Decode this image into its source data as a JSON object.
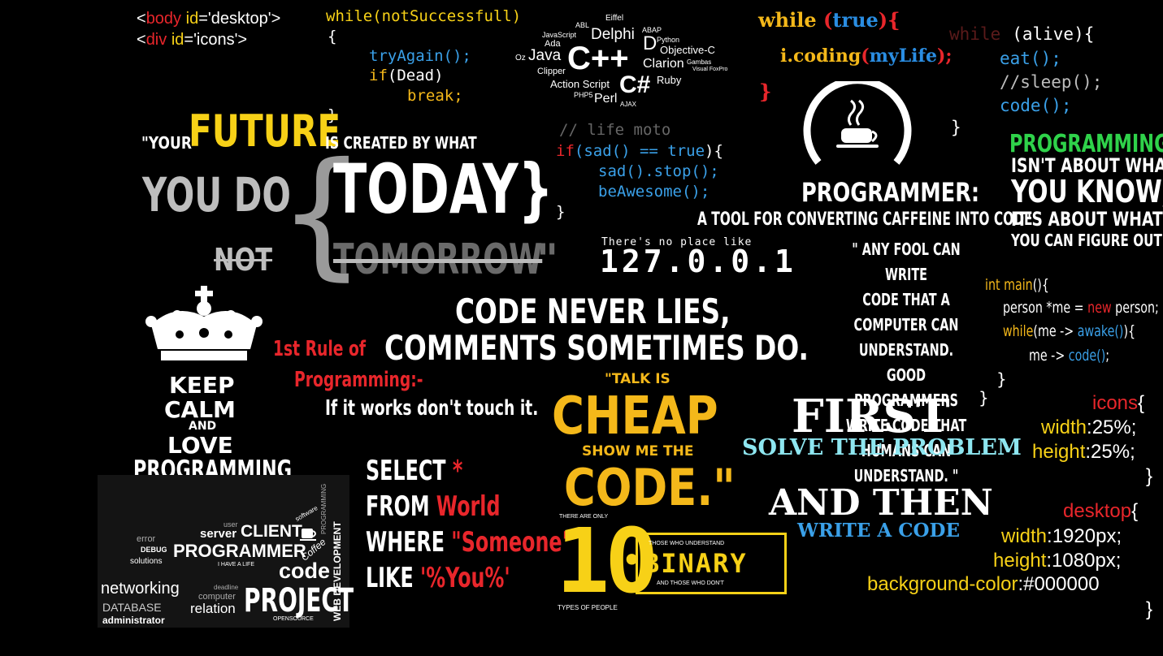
{
  "html_snippet": {
    "line1_a": "<",
    "line1_b": "body",
    "line1_c": " id",
    "line1_d": "=",
    "line1_e": "'desktop'",
    ">": ">",
    "line2_a": "<",
    "line2_b": "div",
    "line2_c": " id",
    "line2_d": "=",
    "line2_e": "'icons'"
  },
  "while_block": {
    "l1": "while(notSuccessfull)",
    "l2": "{",
    "l3": "tryAgain();",
    "l4a": "if",
    "l4b": "(Dead)",
    "l5": "break;",
    "l6": "}"
  },
  "langs": {
    "abl": "ABL",
    "eiffel": "Eiffel",
    "abap": "ABAP",
    "javascript": "JavaScript",
    "delphi": "Delphi",
    "d": "D",
    "python": "Python",
    "ada": "Ada",
    "objc": "Objective-C",
    "oz": "Oz",
    "java": "Java",
    "cpp": "C++",
    "clarion": "Clarion",
    "gambas": "Gambas",
    "clipper": "Clipper",
    "csharp": "C#",
    "ruby": "Ruby",
    "actionscript": "Action Script",
    "php": "PHP5",
    "perl": "Perl",
    "ajax": "AJAX",
    "visualfox": "Visual FoxPro"
  },
  "while_true": {
    "kw": "while",
    "p1": " (",
    "val": "true",
    "p2": "){",
    "body_a": "i.coding",
    "body_b": "(",
    "body_c": "myLife",
    "body_d": ");",
    "close": "}"
  },
  "while_alive": {
    "kw": "while",
    "rest": "(alive){",
    "l2": "eat();",
    "l3": "//sleep();",
    "l4": "code();",
    "close": "}"
  },
  "future_quote": {
    "q1": "\"YOUR",
    "future": "FUTURE",
    "q2": "IS CREATED BY WHAT",
    "youdo": "YOU DO",
    "brace": "{",
    "today": "TODAY}",
    "not": "NOT",
    "tomorrow": "TOMORROW",
    "endq": "\""
  },
  "life_moto": {
    "c": "// life moto",
    "l1a": "if",
    "l1b": "(sad() == ",
    "l1c": "true",
    "l1d": "){",
    "l2": "sad().stop();",
    "l3": "beAwesome();",
    "close": "}"
  },
  "localhost": {
    "t": "There's no place like",
    "ip": "127.0.0.1"
  },
  "programmer": {
    "title": "PROGRAMMER:",
    "sub": "A TOOL FOR CONVERTING CAFFEINE INTO CODE"
  },
  "programming_quote": {
    "l1": "PROGRAMMING",
    "l2": "ISN'T ABOUT WHAT",
    "l3": "YOU KNOW;",
    "l4": "IT'S ABOUT WHAT",
    "l5": "YOU CAN FIGURE OUT"
  },
  "fool_quote": {
    "l1": "\" ANY FOOL CAN WRITE",
    "l2": "CODE THAT A",
    "l3": "COMPUTER CAN UNDERSTAND.",
    "l4": "GOOD PROGRAMMERS",
    "l5": "WRITE CODE THAT",
    "l6": "HUMANS CAN UNDERSTAND. \""
  },
  "main_code": {
    "l1a": "int ",
    "l1b": "main",
    "l1c": "(){",
    "l2a": "person *me = ",
    "l2b": "new",
    "l2c": " person;",
    "l3a": "while",
    "l3b": "(me -> ",
    "l3c": "awake()",
    "l3d": "){",
    "l4a": "me -> ",
    "l4b": "code()",
    "l4c": ";",
    "c1": "}",
    "c2": "}"
  },
  "keep_calm": {
    "l1": "KEEP",
    "l2": "CALM",
    "l3": "AND",
    "l4": "LOVE",
    "l5": "PROGRAMMING"
  },
  "code_never": {
    "l1": "CODE NEVER LIES,",
    "l2": "COMMENTS SOMETIMES DO."
  },
  "first_rule": {
    "l1": "1st Rule of",
    "l2": "Programming:-",
    "l3": "If it works don't touch it."
  },
  "talk_cheap": {
    "l1": "\"TALK IS",
    "l2": "CHEAP",
    "l3": "SHOW ME THE",
    "l4": "CODE.\""
  },
  "first_solve": {
    "l1": "FIRST",
    "l2": "SOLVE THE PROBLEM",
    "l3": "AND THEN",
    "l4": "WRITE A CODE"
  },
  "css_icons": {
    "sel": "icons",
    "ob": "{",
    "p1": "width",
    "v1": ":25%;",
    "p2": "height",
    "v2": ":25%;",
    "cb": "}"
  },
  "css_desktop": {
    "sel": "desktop",
    "ob": "{",
    "p1": "width",
    "v1": ":1920px;",
    "p2": "height",
    "v2": ":1080px;",
    "p3": "background-color",
    "v3": ":#000000",
    "cb": "}"
  },
  "sql": {
    "s": "SELECT",
    "star": "*",
    "f": "FROM",
    "world": "World",
    "w": "WHERE",
    "someone": "\"Someone\"",
    "l": "LIKE",
    "you": "'%You%'"
  },
  "binary": {
    "top": "THERE ARE ONLY",
    "ten": "10",
    "bottom": "TYPES OF PEOPLE",
    "t1": "THOSE WHO UNDERSTAND",
    "bin": "BINARY",
    "t2": "AND THOSE WHO DON'T"
  },
  "cloud": {
    "error": "error",
    "debug": "DEBUG",
    "solutions": "solutions",
    "server": "server",
    "client": "CLIENT",
    "user": "user",
    "programmer": "PROGRAMMER",
    "coffee": "Coffee",
    "ihavealife": "I HAVE A LIFE",
    "code": "code",
    "networking": "networking",
    "database": "DATABASE",
    "administrator": "administrator",
    "deadline": "deadline",
    "computer": "computer",
    "relation": "relation",
    "project": "PROJECT",
    "opensource": "OPENSOURCE",
    "webdev": "WEB DEVELOPMENT",
    "programming": "PROGRAMMING",
    "software": "software"
  }
}
